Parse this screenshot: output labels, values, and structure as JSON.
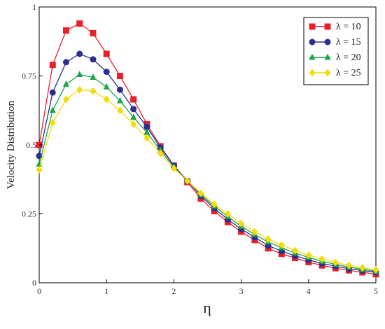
{
  "chart_data": {
    "type": "line",
    "title": "",
    "xlabel": "η",
    "ylabel": "Velocity Distribution",
    "xlim": [
      0,
      5
    ],
    "ylim": [
      0,
      1
    ],
    "x_ticks": [
      {
        "value": 0,
        "label": "0"
      },
      {
        "value": 1,
        "label": "1"
      },
      {
        "value": 2,
        "label": "2"
      },
      {
        "value": 3,
        "label": "3"
      },
      {
        "value": 4,
        "label": "4"
      },
      {
        "value": 5,
        "label": "5"
      }
    ],
    "y_ticks": [
      {
        "value": 0,
        "label": "0"
      },
      {
        "value": 0.25,
        "label": "0.25"
      },
      {
        "value": 0.5,
        "label": "0.5"
      },
      {
        "value": 0.75,
        "label": "0.75"
      },
      {
        "value": 1,
        "label": "1"
      }
    ],
    "grid": false,
    "legend_position": "top-right",
    "x": [
      0,
      0.2,
      0.4,
      0.6,
      0.8,
      1.0,
      1.2,
      1.4,
      1.6,
      1.8,
      2.0,
      2.2,
      2.4,
      2.6,
      2.8,
      3.0,
      3.2,
      3.4,
      3.6,
      3.8,
      4.0,
      4.2,
      4.4,
      4.6,
      4.8,
      5.0
    ],
    "series": [
      {
        "name": "λ = 10",
        "color": "#e8202a",
        "marker": "square",
        "values": [
          0.5,
          0.79,
          0.915,
          0.94,
          0.905,
          0.83,
          0.75,
          0.665,
          0.575,
          0.495,
          0.425,
          0.365,
          0.305,
          0.26,
          0.22,
          0.185,
          0.155,
          0.125,
          0.105,
          0.09,
          0.075,
          0.063,
          0.053,
          0.045,
          0.038,
          0.031
        ]
      },
      {
        "name": "λ = 15",
        "color": "#2a2f8f",
        "marker": "circle",
        "values": [
          0.46,
          0.69,
          0.8,
          0.83,
          0.81,
          0.765,
          0.7,
          0.63,
          0.565,
          0.49,
          0.425,
          0.37,
          0.315,
          0.27,
          0.23,
          0.195,
          0.165,
          0.135,
          0.115,
          0.098,
          0.083,
          0.07,
          0.06,
          0.051,
          0.044,
          0.038
        ]
      },
      {
        "name": "λ = 20",
        "color": "#1ea34a",
        "marker": "triangle",
        "values": [
          0.43,
          0.625,
          0.72,
          0.755,
          0.745,
          0.71,
          0.66,
          0.6,
          0.545,
          0.48,
          0.42,
          0.37,
          0.32,
          0.278,
          0.24,
          0.205,
          0.175,
          0.148,
          0.127,
          0.108,
          0.092,
          0.078,
          0.067,
          0.057,
          0.049,
          0.042
        ]
      },
      {
        "name": "λ = 25",
        "color": "#f2dc0c",
        "marker": "diamond",
        "values": [
          0.41,
          0.58,
          0.665,
          0.7,
          0.695,
          0.665,
          0.625,
          0.575,
          0.525,
          0.47,
          0.415,
          0.37,
          0.325,
          0.285,
          0.25,
          0.215,
          0.185,
          0.158,
          0.137,
          0.117,
          0.1,
          0.086,
          0.074,
          0.063,
          0.054,
          0.047
        ]
      }
    ]
  }
}
